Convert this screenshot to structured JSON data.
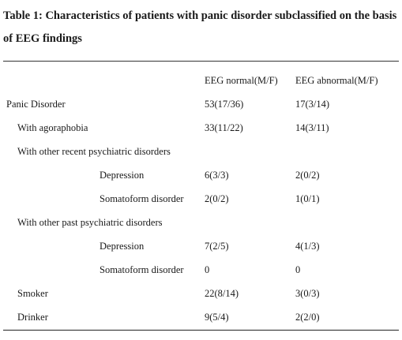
{
  "table": {
    "caption": "Table 1: Characteristics of patients with panic disorder subclassified on the basis of EEG findings",
    "columns": [
      "EEG normal(M/F)",
      "EEG abnormal(M/F)"
    ],
    "rows": [
      {
        "label": "Panic Disorder",
        "normal": "53(17/36)",
        "abnormal": "17(3/14)"
      },
      {
        "label": "With agoraphobia",
        "normal": "33(11/22)",
        "abnormal": "14(3/11)"
      },
      {
        "label": "With other recent psychiatric disorders",
        "normal": "",
        "abnormal": ""
      },
      {
        "label": "Depression",
        "normal": "6(3/3)",
        "abnormal": "2(0/2)"
      },
      {
        "label": "Somatoform disorder",
        "normal": "2(0/2)",
        "abnormal": "1(0/1)"
      },
      {
        "label": "With other past psychiatric disorders",
        "normal": "",
        "abnormal": ""
      },
      {
        "label": "Depression",
        "normal": "7(2/5)",
        "abnormal": "4(1/3)"
      },
      {
        "label": "Somatoform disorder",
        "normal": "0",
        "abnormal": "0"
      },
      {
        "label": "Smoker",
        "normal": "22(8/14)",
        "abnormal": "3(0/3)"
      },
      {
        "label": "Drinker",
        "normal": "9(5/4)",
        "abnormal": "2(2/0)"
      }
    ]
  }
}
